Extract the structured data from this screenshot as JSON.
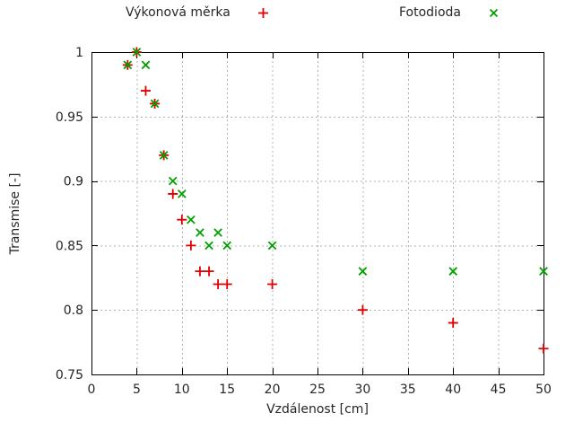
{
  "legend": {
    "items": [
      {
        "label": "Výkonová měrka",
        "marker": "plus",
        "color": "#e00000"
      },
      {
        "label": "Fotodioda",
        "marker": "cross",
        "color": "#00a000"
      }
    ]
  },
  "colors": {
    "grid": "#b0b0b0",
    "axis": "#000000",
    "text": "#262626"
  },
  "chart_data": {
    "type": "scatter",
    "title": "",
    "xlabel": "Vzdálenost [cm]",
    "ylabel": "Transmise [-]",
    "xlim": [
      0,
      50
    ],
    "ylim": [
      0.75,
      1.0
    ],
    "grid": true,
    "legend_position": "above",
    "xticks": {
      "values": [
        0,
        5,
        10,
        15,
        20,
        25,
        30,
        35,
        40,
        45,
        50
      ],
      "labels": [
        "0",
        "5",
        "10",
        "15",
        "20",
        "25",
        "30",
        "35",
        "40",
        "45",
        "50"
      ]
    },
    "yticks": {
      "values": [
        0.75,
        0.8,
        0.85,
        0.9,
        0.95,
        1.0
      ],
      "labels": [
        "0.75",
        "0.8",
        "0.85",
        "0.9",
        "0.95",
        "1"
      ]
    },
    "series": [
      {
        "name": "Výkonová měrka",
        "marker": "plus",
        "color": "#e00000",
        "x": [
          4,
          5,
          6,
          7,
          8,
          9,
          10,
          11,
          12,
          13,
          14,
          15,
          20,
          30,
          40,
          50
        ],
        "y": [
          0.99,
          1.0,
          0.97,
          0.96,
          0.92,
          0.89,
          0.87,
          0.85,
          0.83,
          0.83,
          0.82,
          0.82,
          0.82,
          0.8,
          0.79,
          0.77
        ]
      },
      {
        "name": "Fotodioda",
        "marker": "cross",
        "color": "#00a000",
        "x": [
          4,
          5,
          6,
          7,
          8,
          9,
          10,
          11,
          12,
          13,
          14,
          15,
          20,
          30,
          40,
          50
        ],
        "y": [
          0.99,
          1.0,
          0.99,
          0.96,
          0.92,
          0.9,
          0.89,
          0.87,
          0.86,
          0.85,
          0.86,
          0.85,
          0.85,
          0.83,
          0.83,
          0.83
        ]
      }
    ]
  }
}
